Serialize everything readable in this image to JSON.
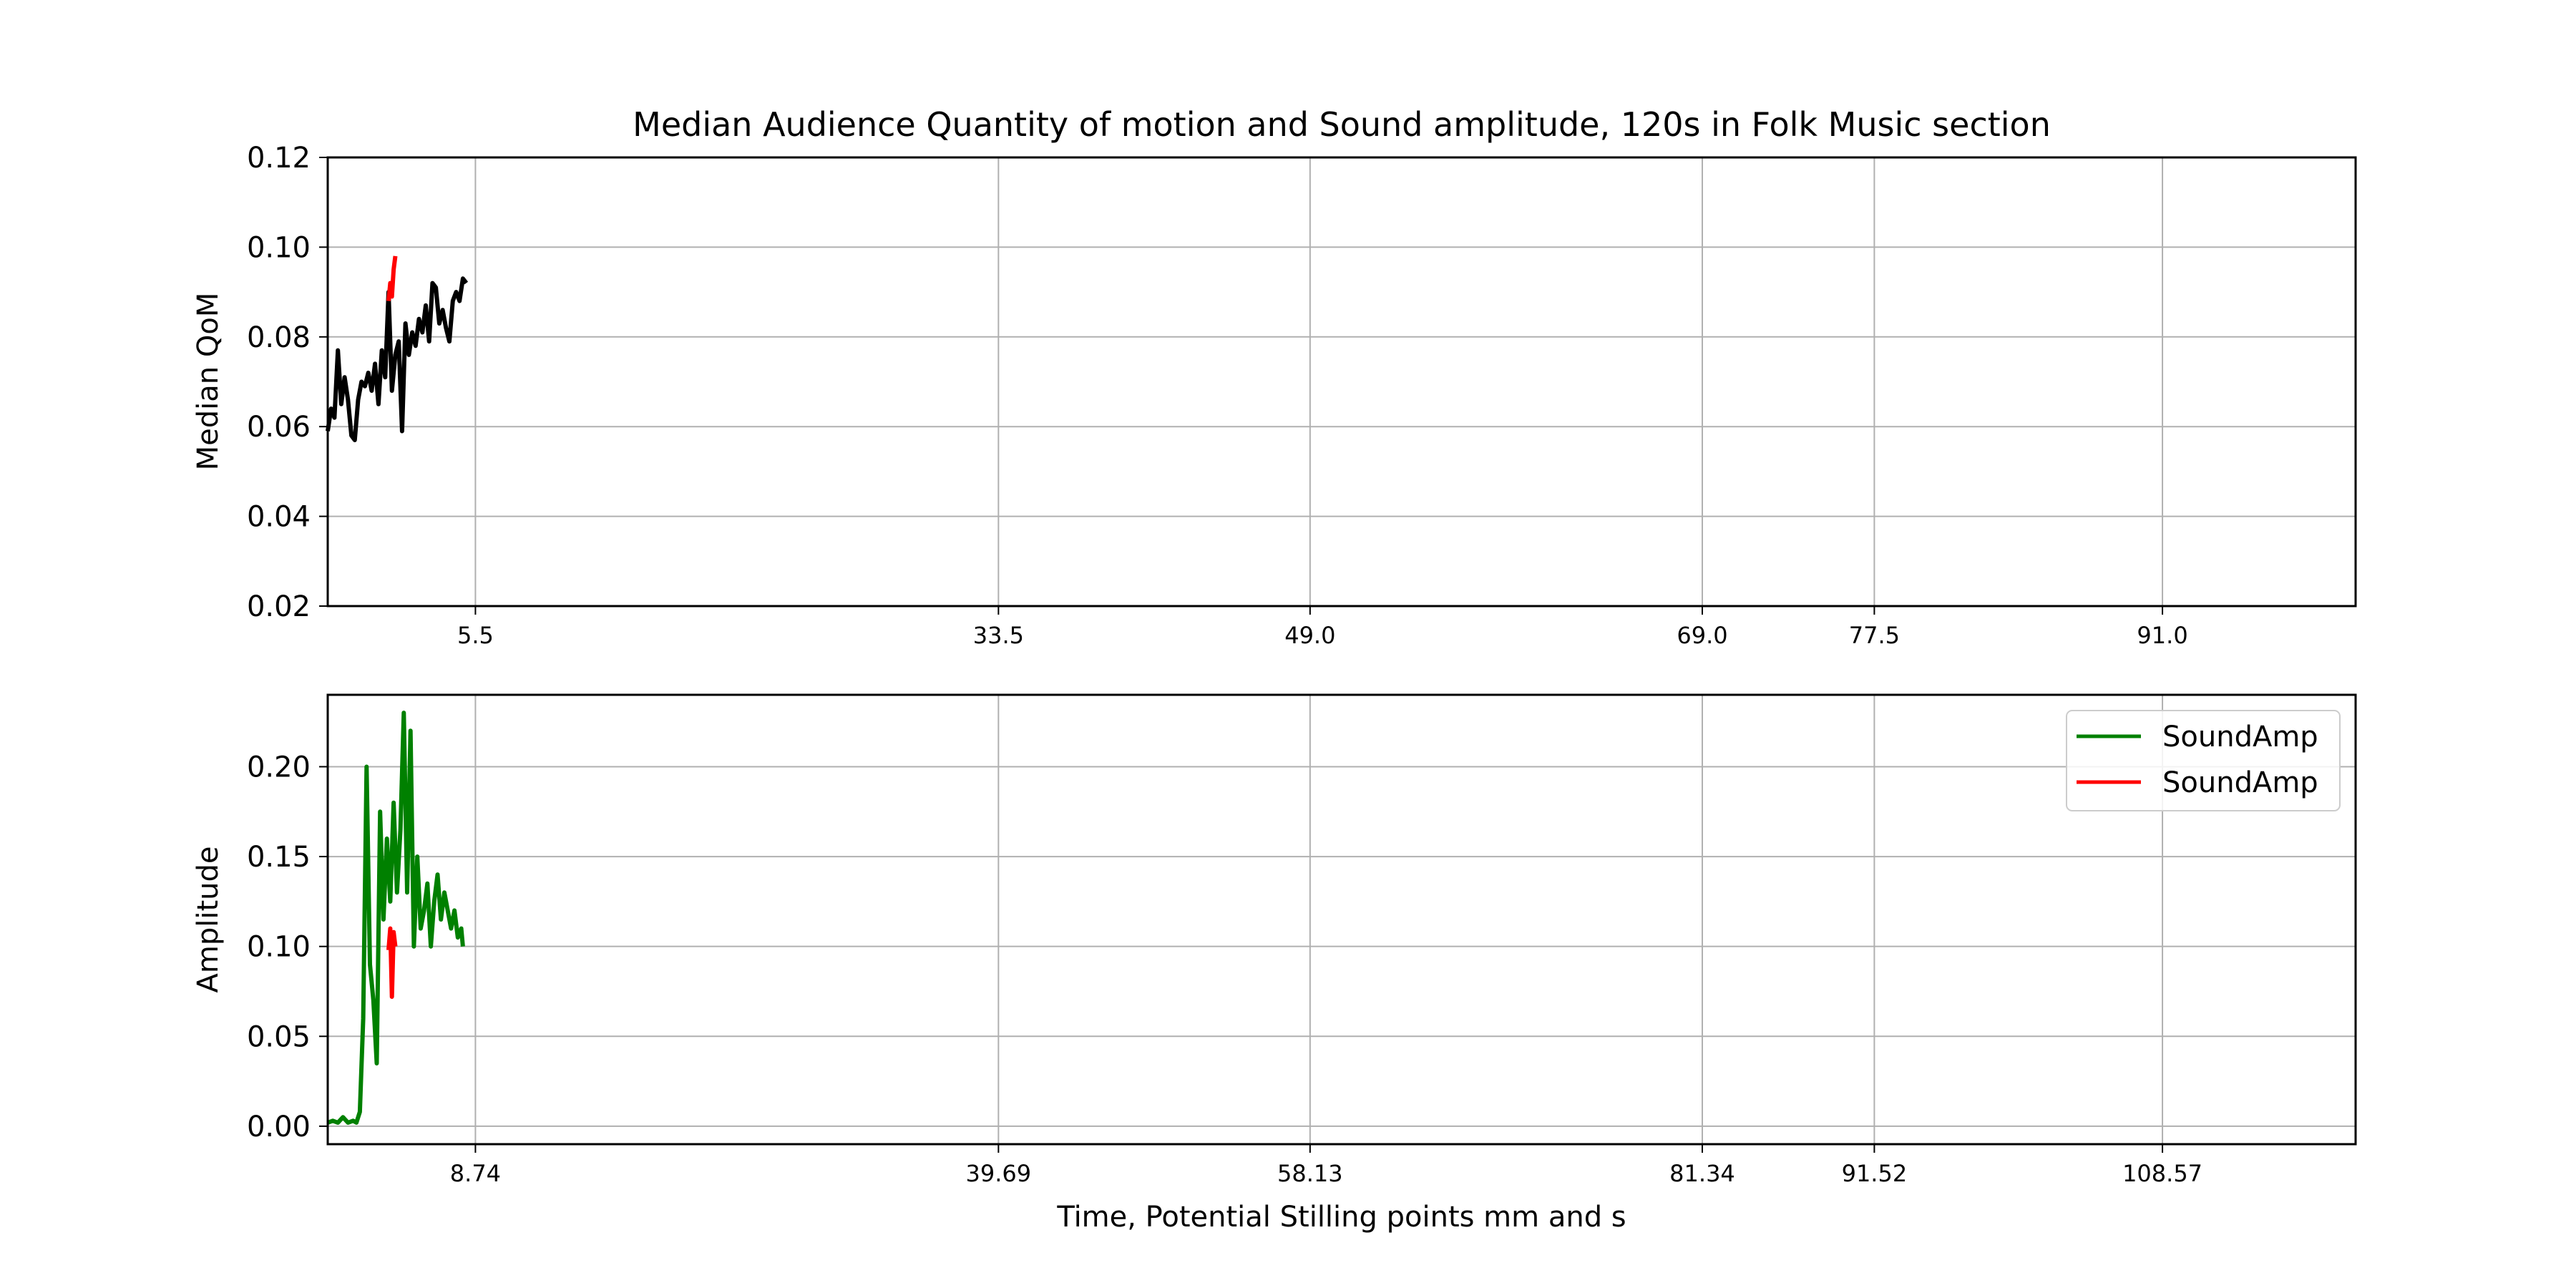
{
  "chart_data": [
    {
      "type": "line",
      "title": "Median Audience Quantity of motion and Sound amplitude, 120s in Folk Music section",
      "ylabel": "Median QoM",
      "xlabel": "",
      "xlim": [
        0,
        120
      ],
      "ylim": [
        0.02,
        0.12
      ],
      "yticks": [
        "0.12",
        "0.10",
        "0.08",
        "0.06",
        "0.04",
        "0.02"
      ],
      "xticks": [
        {
          "x": 8.74,
          "label": "5.5"
        },
        {
          "x": 39.69,
          "label": "33.5"
        },
        {
          "x": 58.13,
          "label": "49.0"
        },
        {
          "x": 81.34,
          "label": "69.0"
        },
        {
          "x": 91.52,
          "label": "77.5"
        },
        {
          "x": 108.57,
          "label": "91.0"
        }
      ],
      "grid": true,
      "series": [
        {
          "color": "#000000",
          "x": [
            0.0,
            0.2,
            0.4,
            0.6,
            0.8,
            1.0,
            1.2,
            1.4,
            1.6,
            1.8,
            2.0,
            2.2,
            2.4,
            2.6,
            2.8,
            3.0,
            3.2,
            3.4,
            3.6,
            3.8,
            4.0,
            4.2,
            4.4,
            4.6,
            4.8,
            5.0,
            5.2,
            5.4,
            5.6,
            5.8,
            6.0,
            6.2,
            6.4,
            6.6,
            6.8,
            7.0,
            7.2,
            7.4,
            7.6,
            7.8,
            8.0,
            8.2
          ],
          "values": [
            0.059,
            0.064,
            0.062,
            0.077,
            0.065,
            0.071,
            0.066,
            0.058,
            0.057,
            0.066,
            0.07,
            0.069,
            0.072,
            0.068,
            0.074,
            0.065,
            0.077,
            0.071,
            0.09,
            0.068,
            0.076,
            0.079,
            0.059,
            0.083,
            0.076,
            0.081,
            0.078,
            0.084,
            0.081,
            0.087,
            0.079,
            0.092,
            0.091,
            0.083,
            0.086,
            0.082,
            0.079,
            0.088,
            0.09,
            0.088,
            0.093,
            0.092
          ]
        },
        {
          "color": "#ff0000",
          "x": [
            3.6,
            3.7,
            3.8,
            3.9,
            4.0
          ],
          "values": [
            0.088,
            0.092,
            0.089,
            0.095,
            0.098
          ]
        }
      ]
    },
    {
      "type": "line",
      "title": "",
      "ylabel": "Amplitude",
      "xlabel": "Time, Potential Stilling points mm and s",
      "xlim": [
        0,
        120
      ],
      "ylim": [
        -0.01,
        0.24
      ],
      "yticks": [
        "0.20",
        "0.15",
        "0.10",
        "0.05",
        "0.00"
      ],
      "xticks": [
        {
          "x": 8.74,
          "label": "8.74"
        },
        {
          "x": 39.69,
          "label": "39.69"
        },
        {
          "x": 58.13,
          "label": "58.13"
        },
        {
          "x": 81.34,
          "label": "81.34"
        },
        {
          "x": 91.52,
          "label": "91.52"
        },
        {
          "x": 108.57,
          "label": "108.57"
        }
      ],
      "grid": true,
      "legend_position": "top-right",
      "legend": [
        "SoundAmp",
        "SoundAmp"
      ],
      "series": [
        {
          "name": "SoundAmp",
          "color": "#008000",
          "x": [
            0.0,
            0.3,
            0.6,
            0.9,
            1.2,
            1.5,
            1.7,
            1.9,
            2.1,
            2.3,
            2.5,
            2.7,
            2.9,
            3.1,
            3.3,
            3.5,
            3.7,
            3.9,
            4.1,
            4.3,
            4.5,
            4.7,
            4.9,
            5.1,
            5.3,
            5.5,
            5.7,
            5.9,
            6.1,
            6.3,
            6.5,
            6.7,
            6.9,
            7.1,
            7.3,
            7.5,
            7.7,
            7.9,
            8.0
          ],
          "values": [
            0.002,
            0.003,
            0.002,
            0.005,
            0.002,
            0.003,
            0.002,
            0.008,
            0.06,
            0.2,
            0.09,
            0.07,
            0.035,
            0.175,
            0.115,
            0.16,
            0.125,
            0.18,
            0.13,
            0.165,
            0.23,
            0.13,
            0.22,
            0.1,
            0.15,
            0.11,
            0.12,
            0.135,
            0.1,
            0.125,
            0.14,
            0.115,
            0.13,
            0.12,
            0.11,
            0.12,
            0.105,
            0.11,
            0.1
          ]
        },
        {
          "name": "SoundAmp",
          "color": "#ff0000",
          "x": [
            3.6,
            3.7,
            3.8,
            3.9,
            4.0
          ],
          "values": [
            0.098,
            0.11,
            0.072,
            0.108,
            0.1
          ]
        }
      ]
    }
  ]
}
